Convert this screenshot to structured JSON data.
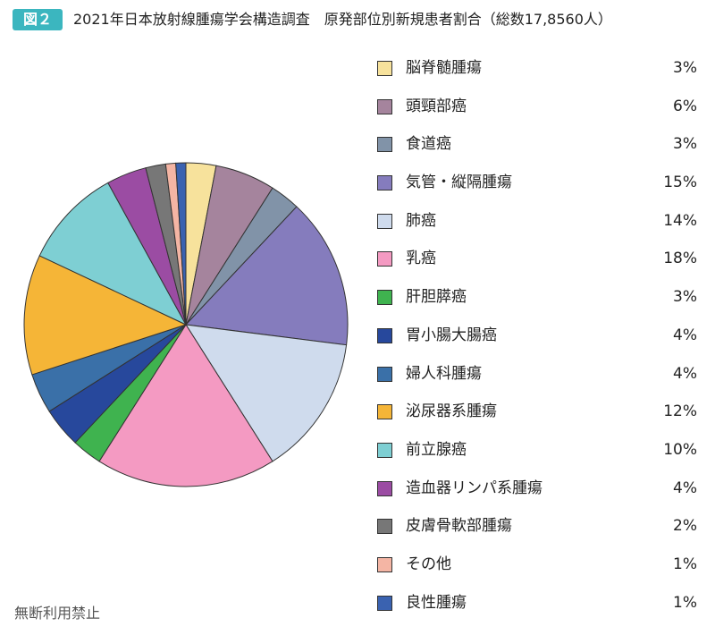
{
  "header": {
    "badge": "図２",
    "title": "2021年日本放射線腫瘍学会構造調査　原発部位別新規患者割合（総数17,8560人）"
  },
  "footer": {
    "note": "無断利用禁止"
  },
  "chart_data": {
    "type": "pie",
    "title": "2021年日本放射線腫瘍学会構造調査　原発部位別新規患者割合（総数17,8560人）",
    "legend_position": "right",
    "slices": [
      {
        "label": "脳脊髄腫瘍",
        "value": 3,
        "display": "3%",
        "color": "#f7e29c"
      },
      {
        "label": "頭頸部癌",
        "value": 6,
        "display": "6%",
        "color": "#a5849d"
      },
      {
        "label": "食道癌",
        "value": 3,
        "display": "3%",
        "color": "#8193a8"
      },
      {
        "label": "気管・縦隔腫瘍",
        "value": 15,
        "display": "15%",
        "color": "#857cbd"
      },
      {
        "label": "肺癌",
        "value": 14,
        "display": "14%",
        "color": "#cfdbed"
      },
      {
        "label": "乳癌",
        "value": 18,
        "display": "18%",
        "color": "#f49ac2"
      },
      {
        "label": "肝胆膵癌",
        "value": 3,
        "display": "3%",
        "color": "#3fb34f"
      },
      {
        "label": "胃小腸大腸癌",
        "value": 4,
        "display": "4%",
        "color": "#27489c"
      },
      {
        "label": "婦人科腫瘍",
        "value": 4,
        "display": "4%",
        "color": "#3a70a8"
      },
      {
        "label": "泌尿器系腫瘍",
        "value": 12,
        "display": "12%",
        "color": "#f5b537"
      },
      {
        "label": "前立腺癌",
        "value": 10,
        "display": "10%",
        "color": "#7ecfd3"
      },
      {
        "label": "造血器リンパ系腫瘍",
        "value": 4,
        "display": "4%",
        "color": "#9b4ca3"
      },
      {
        "label": "皮膚骨軟部腫瘍",
        "value": 2,
        "display": "2%",
        "color": "#777777"
      },
      {
        "label": "その他",
        "value": 1,
        "display": "1%",
        "color": "#f4b5a4"
      },
      {
        "label": "良性腫瘍",
        "value": 1,
        "display": "1%",
        "color": "#3a62b0"
      }
    ]
  }
}
